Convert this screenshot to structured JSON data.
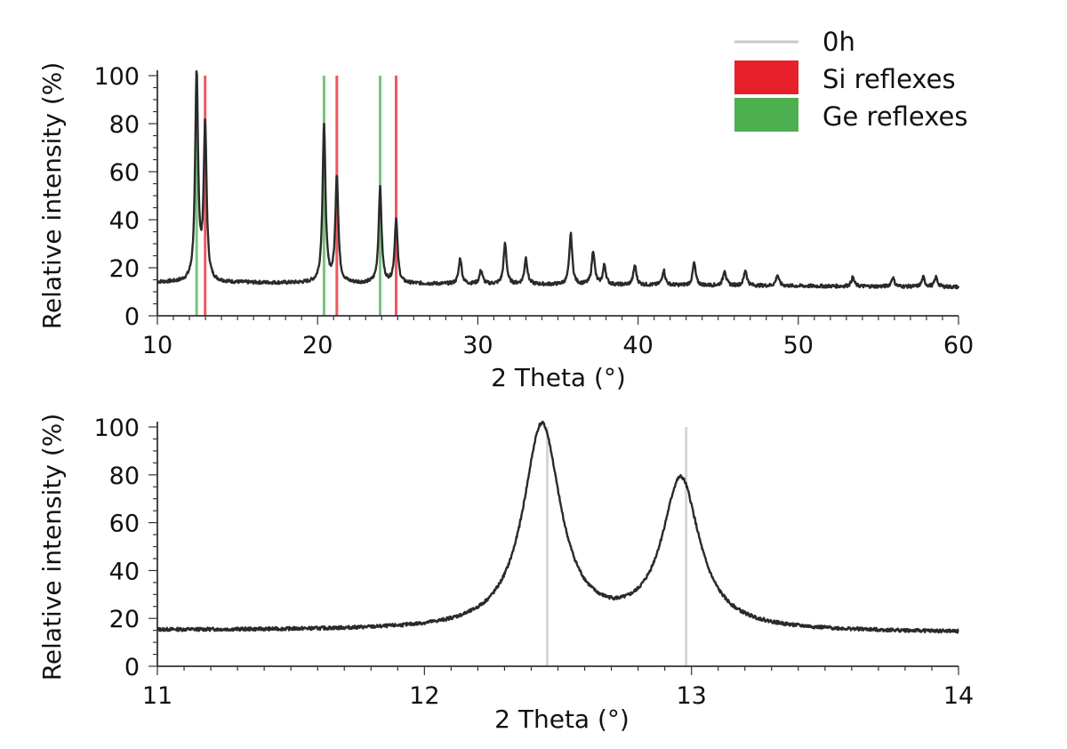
{
  "chart_data": [
    {
      "type": "line",
      "xlabel": "2 Theta (°)",
      "ylabel": "Relative intensity (%)",
      "xlim": [
        10,
        60
      ],
      "ylim": [
        0,
        100
      ],
      "x_ticks": [
        10,
        20,
        30,
        40,
        50,
        60
      ],
      "y_ticks": [
        0,
        20,
        40,
        60,
        80,
        100
      ],
      "grid": false,
      "legend_position": "top-right",
      "legend": [
        {
          "label": "0h",
          "color": "#c8c8c8",
          "kind": "line"
        },
        {
          "label": "Si reflexes",
          "color": "#e8202a",
          "kind": "box"
        },
        {
          "label": "Ge reflexes",
          "color": "#4caf50",
          "kind": "box"
        }
      ],
      "series": [
        {
          "name": "0h",
          "baseline": 14,
          "baseline_end": 12,
          "peaks": [
            {
              "x": 12.45,
              "y": 100
            },
            {
              "x": 12.98,
              "y": 78
            },
            {
              "x": 20.4,
              "y": 79
            },
            {
              "x": 21.2,
              "y": 58
            },
            {
              "x": 23.9,
              "y": 53
            },
            {
              "x": 24.9,
              "y": 40
            },
            {
              "x": 28.9,
              "y": 24
            },
            {
              "x": 30.2,
              "y": 19
            },
            {
              "x": 31.7,
              "y": 30
            },
            {
              "x": 33.0,
              "y": 24
            },
            {
              "x": 35.8,
              "y": 34
            },
            {
              "x": 37.2,
              "y": 27
            },
            {
              "x": 37.9,
              "y": 21
            },
            {
              "x": 39.8,
              "y": 21
            },
            {
              "x": 41.6,
              "y": 19
            },
            {
              "x": 43.5,
              "y": 22
            },
            {
              "x": 45.4,
              "y": 19
            },
            {
              "x": 46.7,
              "y": 19
            },
            {
              "x": 48.7,
              "y": 17
            },
            {
              "x": 53.4,
              "y": 16
            },
            {
              "x": 55.9,
              "y": 16
            },
            {
              "x": 57.8,
              "y": 16
            },
            {
              "x": 58.6,
              "y": 16
            }
          ]
        }
      ],
      "reference_lines": [
        {
          "series": "Si reflexes",
          "color": "#e8202a",
          "x": [
            12.98,
            21.2,
            24.9
          ]
        },
        {
          "series": "Ge reflexes",
          "color": "#4caf50",
          "x": [
            12.45,
            20.4,
            23.9
          ]
        }
      ]
    },
    {
      "type": "line",
      "xlabel": "2 Theta (°)",
      "ylabel": "Relative intensity (%)",
      "xlim": [
        11,
        14
      ],
      "ylim": [
        0,
        100
      ],
      "x_ticks": [
        11,
        12,
        13,
        14
      ],
      "y_ticks": [
        0,
        20,
        40,
        60,
        80,
        100
      ],
      "grid": false,
      "series": [
        {
          "name": "0h",
          "baseline": 15,
          "baseline_end": 14,
          "peaks": [
            {
              "x": 12.44,
              "y": 100
            },
            {
              "x": 12.96,
              "y": 77
            }
          ]
        }
      ],
      "reference_lines": [
        {
          "color": "#c8c8c8",
          "x": [
            12.46,
            12.98
          ]
        }
      ]
    }
  ]
}
